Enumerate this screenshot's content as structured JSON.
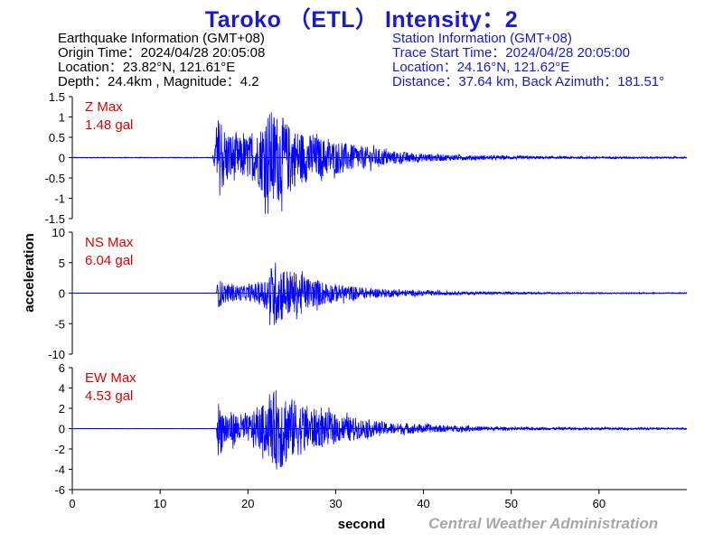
{
  "title": "Taroko （ETL） Intensity：2",
  "earthquake_info": {
    "heading": "Earthquake Information  (GMT+08)",
    "origin_time": "Origin Time：2024/04/28 20:05:08",
    "location": "Location：23.82°N, 121.61°E",
    "depth_magnitude": "Depth：24.4km , Magnitude：4.2"
  },
  "station_info": {
    "heading": "Station Information  (GMT+08)",
    "trace_start": "Trace Start Time：2024/04/28 20:05:00",
    "location": "Location：24.16°N, 121.62°E",
    "distance": "Distance：37.64 km, Back Azimuth：181.51°"
  },
  "credit": "Central Weather Administration",
  "colors": {
    "trace": "#0000ff",
    "label": "#e00000",
    "title": "#1a1acd",
    "credit": "#a8a8a8"
  },
  "chart_data": {
    "type": "line",
    "xlabel": "second",
    "ylabel": "acceleration",
    "xlim": [
      0,
      70
    ],
    "xticks": [
      0,
      10,
      20,
      30,
      40,
      50,
      60
    ],
    "grid": false,
    "signal_onset_s": 16.5,
    "series": [
      {
        "name": "Z Max",
        "max_label": "1.48 gal",
        "ylim": [
          -1.5,
          1.5
        ],
        "yticks": [
          -1.5,
          -1,
          -0.5,
          0,
          0.5,
          1,
          1.5
        ],
        "ytick_labels": [
          "-1.5",
          "-1",
          "-0.5",
          "0",
          "0.5",
          "1",
          "1.5"
        ],
        "envelope": [
          [
            0,
            0.01
          ],
          [
            16,
            0.01
          ],
          [
            16.5,
            1.05
          ],
          [
            17.5,
            0.7
          ],
          [
            19,
            0.5
          ],
          [
            21,
            0.6
          ],
          [
            22.3,
            1.2
          ],
          [
            23.5,
            1.1
          ],
          [
            25,
            0.75
          ],
          [
            28,
            0.5
          ],
          [
            32,
            0.32
          ],
          [
            36,
            0.18
          ],
          [
            40,
            0.1
          ],
          [
            45,
            0.06
          ],
          [
            55,
            0.03
          ],
          [
            70,
            0.02
          ]
        ]
      },
      {
        "name": "NS Max",
        "max_label": "6.04 gal",
        "ylim": [
          -10,
          10
        ],
        "yticks": [
          -10,
          -5,
          0,
          5,
          10
        ],
        "ytick_labels": [
          "-10",
          "-5",
          "0",
          "5",
          "10"
        ],
        "envelope": [
          [
            0,
            0.02
          ],
          [
            16.4,
            0.02
          ],
          [
            16.6,
            2.4
          ],
          [
            17.5,
            1.5
          ],
          [
            20,
            1.2
          ],
          [
            21.8,
            2.2
          ],
          [
            23,
            5.5
          ],
          [
            24.5,
            4
          ],
          [
            27,
            2.5
          ],
          [
            30,
            1.5
          ],
          [
            34,
            0.8
          ],
          [
            40,
            0.4
          ],
          [
            45,
            0.25
          ],
          [
            55,
            0.12
          ],
          [
            70,
            0.08
          ]
        ]
      },
      {
        "name": "EW Max",
        "max_label": "4.53 gal",
        "ylim": [
          -6,
          6
        ],
        "yticks": [
          -6,
          -4,
          -2,
          0,
          2,
          4,
          6
        ],
        "ytick_labels": [
          "-6",
          "-4",
          "-2",
          "0",
          "2",
          "4",
          "6"
        ],
        "envelope": [
          [
            0,
            0.02
          ],
          [
            16.4,
            0.02
          ],
          [
            16.6,
            2.8
          ],
          [
            17.5,
            1.8
          ],
          [
            20,
            1.3
          ],
          [
            22,
            2.5
          ],
          [
            23.5,
            4.3
          ],
          [
            25,
            3
          ],
          [
            28,
            1.8
          ],
          [
            32,
            1.1
          ],
          [
            36,
            0.6
          ],
          [
            42,
            0.35
          ],
          [
            50,
            0.15
          ],
          [
            70,
            0.08
          ]
        ]
      }
    ]
  }
}
